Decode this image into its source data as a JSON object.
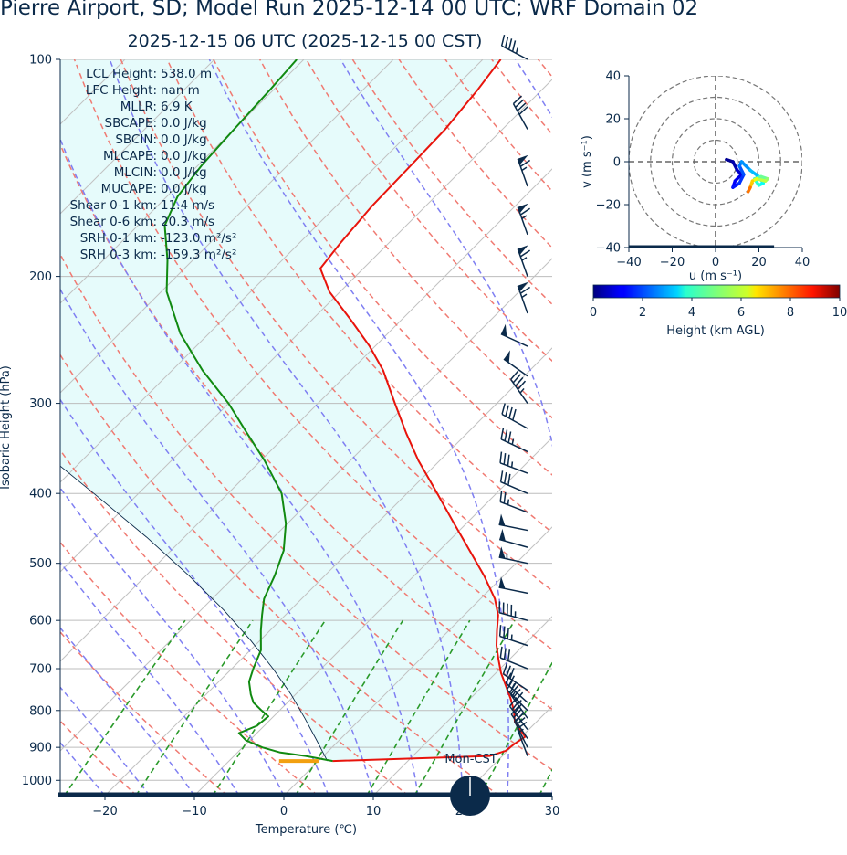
{
  "header": {
    "title": "Pierre Airport, SD; Model Run 2025-12-14 00 UTC; WRF Domain 02",
    "valid_time": "2025-12-15 06 UTC  (2025-12-15 00 CST)"
  },
  "stats": [
    {
      "label": "LCL Height:",
      "value": "538.0 m"
    },
    {
      "label": "LFC Height:",
      "value": "nan m"
    },
    {
      "label": "MLLR:",
      "value": "6.9 K"
    },
    {
      "label": "SBCAPE:",
      "value": "0.0 J/kg"
    },
    {
      "label": "SBCIN:",
      "value": "0.0 J/kg"
    },
    {
      "label": "MLCAPE:",
      "value": "0.0 J/kg"
    },
    {
      "label": "MLCIN:",
      "value": "0.0 J/kg"
    },
    {
      "label": "MUCAPE:",
      "value": "0.0 J/kg"
    },
    {
      "label": "Shear 0-1 km:",
      "value": "11.4 m/s"
    },
    {
      "label": "Shear 0-6 km:",
      "value": "20.3 m/s"
    },
    {
      "label": "SRH 0-1 km:",
      "value": "-123.0 m²/s²"
    },
    {
      "label": "SRH 0-3 km:",
      "value": "-159.3 m²/s²"
    }
  ],
  "moon_label": "Mon-CST",
  "colors": {
    "temperature": "#e8140c",
    "dewpoint": "#118a11",
    "dry_adiabat": "#f07a72",
    "moist_adiabat": "#7f7ff2",
    "mixing_ratio": "#2a9a2a",
    "parcel": "#0b2a4a",
    "cape_fill": "#e6fbfb",
    "navy": "#0b2a4a",
    "lcl_marker": "#f2a010"
  },
  "chart_data": [
    {
      "type": "line",
      "name": "skew-t",
      "xlabel": "Temperature (℃)",
      "ylabel": "Isobaric Height (hPa)",
      "xlim": [
        -25,
        30
      ],
      "ylim": [
        1050,
        100
      ],
      "y_scale": "log",
      "skew_deg": 45,
      "x_ticks": [
        -20,
        -10,
        0,
        10,
        20,
        30
      ],
      "y_ticks": [
        100,
        200,
        300,
        400,
        500,
        600,
        700,
        800,
        900,
        1000
      ],
      "grid": true,
      "temperature": {
        "p": [
          940,
          925,
          910,
          890,
          870,
          850,
          830,
          800,
          770,
          740,
          710,
          680,
          650,
          620,
          590,
          560,
          520,
          480,
          440,
          400,
          360,
          330,
          300,
          270,
          250,
          230,
          210,
          195,
          180,
          160,
          140,
          125,
          110,
          100
        ],
        "t": [
          1.6,
          18.6,
          19.8,
          20.0,
          20.4,
          19.0,
          17.6,
          16.2,
          14.5,
          12.6,
          10.6,
          8.8,
          7.0,
          5.4,
          3.8,
          1.6,
          -2.2,
          -6.6,
          -11.4,
          -16.6,
          -22.4,
          -26.8,
          -31.4,
          -36.4,
          -40.6,
          -45.6,
          -51.2,
          -54.8,
          -55.4,
          -56.0,
          -56.2,
          -56.4,
          -57.2,
          -58.0
        ]
      },
      "dewpoint": {
        "p": [
          940,
          925,
          915,
          900,
          880,
          860,
          840,
          815,
          800,
          780,
          760,
          730,
          700,
          660,
          620,
          590,
          560,
          520,
          480,
          440,
          400,
          360,
          330,
          300,
          270,
          240,
          210,
          190,
          170,
          155,
          140,
          125,
          110,
          100
        ],
        "td": [
          1.6,
          -2.0,
          -5.2,
          -7.8,
          -10.4,
          -12.0,
          -10.8,
          -10.6,
          -12.0,
          -13.8,
          -15.0,
          -16.6,
          -17.6,
          -18.8,
          -21.0,
          -22.6,
          -24.2,
          -25.6,
          -27.4,
          -30.2,
          -34.0,
          -39.6,
          -44.6,
          -50.0,
          -56.6,
          -63.2,
          -69.4,
          -72.8,
          -77.0,
          -78.8,
          -79.6,
          -80.0,
          -80.4,
          -80.8
        ]
      },
      "parcel": {
        "p": [
          940,
          880,
          820,
          760,
          700,
          640,
          580,
          520,
          460,
          400,
          350
        ],
        "t": [
          1.0,
          -2.5,
          -6.3,
          -10.5,
          -15.4,
          -21.0,
          -27.5,
          -35.2,
          -44.2,
          -55.0,
          -65.4
        ]
      },
      "lcl_marker": {
        "p": 940,
        "t_from": -4.4,
        "t_to": 0.0
      },
      "wind_barbs": [
        {
          "p": 100,
          "u": 21,
          "v": -11
        },
        {
          "p": 125,
          "u": 10,
          "v": -18
        },
        {
          "p": 150,
          "u": 11,
          "v": -31
        },
        {
          "p": 175,
          "u": 11,
          "v": -31
        },
        {
          "p": 200,
          "u": 11,
          "v": -31
        },
        {
          "p": 225,
          "u": 11,
          "v": -31
        },
        {
          "p": 250,
          "u": 24,
          "v": -11
        },
        {
          "p": 275,
          "u": 21,
          "v": -15
        },
        {
          "p": 300,
          "u": 14,
          "v": -20
        },
        {
          "p": 325,
          "u": 18,
          "v": -10
        },
        {
          "p": 350,
          "u": 17,
          "v": -8
        },
        {
          "p": 375,
          "u": 16,
          "v": -6
        },
        {
          "p": 400,
          "u": 14,
          "v": -6
        },
        {
          "p": 425,
          "u": 13,
          "v": -5
        },
        {
          "p": 450,
          "u": 25,
          "v": -5
        },
        {
          "p": 475,
          "u": 25,
          "v": -7
        },
        {
          "p": 500,
          "u": 28,
          "v": -6
        },
        {
          "p": 550,
          "u": 25,
          "v": -5
        },
        {
          "p": 600,
          "u": 22,
          "v": -6
        },
        {
          "p": 650,
          "u": 18,
          "v": -6
        },
        {
          "p": 700,
          "u": 15,
          "v": -6
        },
        {
          "p": 750,
          "u": 12,
          "v": -8
        },
        {
          "p": 780,
          "u": 10,
          "v": -9
        },
        {
          "p": 800,
          "u": 10,
          "v": -10
        },
        {
          "p": 820,
          "u": 10,
          "v": -14
        },
        {
          "p": 850,
          "u": 10,
          "v": -13
        },
        {
          "p": 875,
          "u": 8,
          "v": -12
        },
        {
          "p": 900,
          "u": 5,
          "v": -10
        },
        {
          "p": 925,
          "u": 3,
          "v": -8
        }
      ],
      "annotations": [
        "Mon-CST"
      ]
    },
    {
      "type": "line",
      "name": "hodograph",
      "xlabel": "u (m s⁻¹)",
      "ylabel": "v (m s⁻¹)",
      "xlim": [
        -40,
        40
      ],
      "ylim": [
        -40,
        40
      ],
      "x_ticks": [
        -40,
        -20,
        0,
        20,
        40
      ],
      "y_ticks": [
        -40,
        -20,
        0,
        20,
        40
      ],
      "rings": [
        10,
        20,
        30,
        40
      ],
      "points": [
        {
          "u": 5,
          "v": 1,
          "h": 0.1
        },
        {
          "u": 8,
          "v": 0,
          "h": 0.3
        },
        {
          "u": 10,
          "v": -4,
          "h": 0.6
        },
        {
          "u": 12,
          "v": -6,
          "h": 0.9
        },
        {
          "u": 9,
          "v": -9,
          "h": 1.1
        },
        {
          "u": 8,
          "v": -12,
          "h": 1.3
        },
        {
          "u": 11,
          "v": -10,
          "h": 1.6
        },
        {
          "u": 13,
          "v": -6,
          "h": 1.9
        },
        {
          "u": 11,
          "v": -2,
          "h": 2.2
        },
        {
          "u": 12,
          "v": 0,
          "h": 2.5
        },
        {
          "u": 16,
          "v": -4,
          "h": 2.9
        },
        {
          "u": 20,
          "v": -7,
          "h": 3.3
        },
        {
          "u": 22,
          "v": -10,
          "h": 3.7
        },
        {
          "u": 20,
          "v": -11,
          "h": 4.0
        },
        {
          "u": 18,
          "v": -8,
          "h": 4.3
        },
        {
          "u": 21,
          "v": -7,
          "h": 4.6
        },
        {
          "u": 24,
          "v": -8,
          "h": 5.0
        },
        {
          "u": 23,
          "v": -9,
          "h": 5.4
        },
        {
          "u": 19,
          "v": -8,
          "h": 5.8
        },
        {
          "u": 17,
          "v": -9,
          "h": 6.3
        },
        {
          "u": 16,
          "v": -12,
          "h": 7.2
        },
        {
          "u": 15,
          "v": -14,
          "h": 8.0
        }
      ]
    },
    {
      "type": "heatmap",
      "name": "height-colorbar",
      "label": "Height (km AGL)",
      "range": [
        0,
        10
      ],
      "ticks": [
        0,
        2,
        4,
        6,
        8,
        10
      ],
      "colormap": "jet"
    }
  ]
}
